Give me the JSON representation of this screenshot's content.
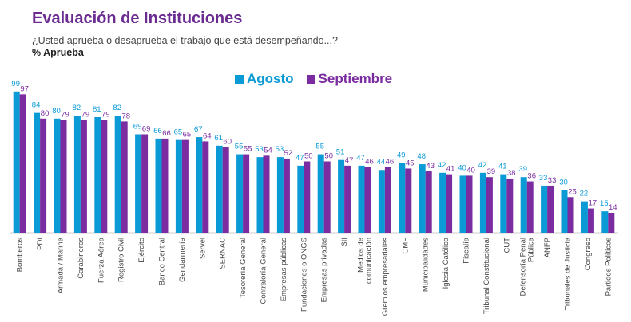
{
  "chart_data": {
    "type": "bar",
    "title": "Evaluación de Instituciones",
    "subtitle": "¿Usted aprueba o desaprueba el trabajo que está desempeñando...?",
    "measure": "% Aprueba",
    "legend_position": "top-center",
    "grid": false,
    "ylim": [
      0,
      100
    ],
    "categories": [
      "Bomberos",
      "PDI",
      "Armada / Marina",
      "Carabineros",
      "Fuerza Aérea",
      "Registro Civil",
      "Ejército",
      "Banco Central",
      "Gendarmería",
      "Servel",
      "SERNAC",
      "Tesorería General",
      "Contraloría General",
      "Empresas públicas",
      "Fundaciones o ONGS",
      "Empresas privadas",
      "SII",
      "Medios de comunicación",
      "Gremios empresariales",
      "CMF",
      "Municipalidades",
      "Iglesia Católica",
      "Fiscalía",
      "Tribunal Constitucional",
      "CUT",
      "Defensoría Penal Pública",
      "ANFP",
      "Tribunales de Justicia",
      "Congreso",
      "Partidos Políticos"
    ],
    "series": [
      {
        "name": "Agosto",
        "color": "#0a9ad6",
        "values": [
          99,
          84,
          80,
          82,
          81,
          82,
          69,
          66,
          65,
          67,
          61,
          55,
          53,
          53,
          47,
          55,
          51,
          47,
          44,
          49,
          48,
          42,
          40,
          42,
          41,
          39,
          33,
          30,
          22,
          15
        ]
      },
      {
        "name": "Septiembre",
        "color": "#7b2ca0",
        "values": [
          97,
          80,
          79,
          79,
          79,
          78,
          69,
          66,
          65,
          64,
          60,
          55,
          54,
          52,
          50,
          50,
          47,
          46,
          46,
          45,
          43,
          41,
          40,
          39,
          38,
          36,
          33,
          25,
          17,
          14
        ]
      }
    ]
  }
}
